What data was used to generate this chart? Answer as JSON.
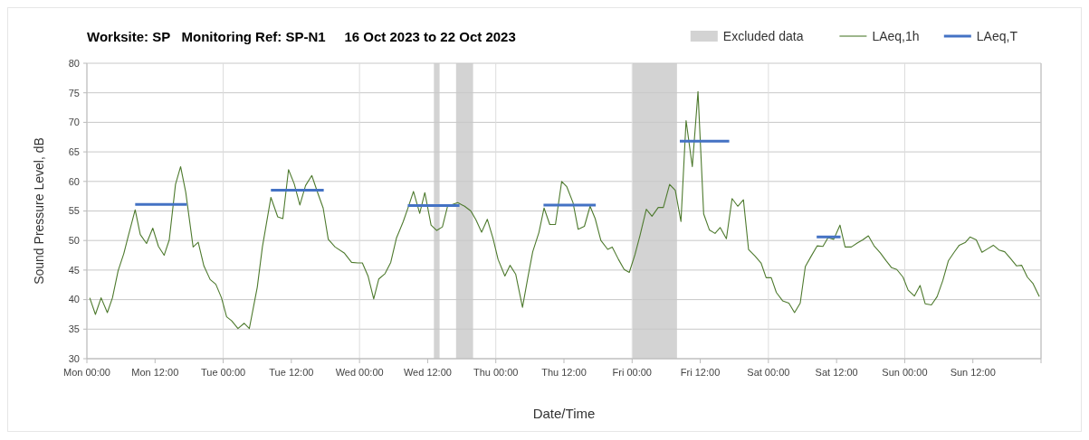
{
  "chart_data": {
    "type": "line",
    "title": "Worksite: SP   Monitoring Ref: SP-N1     16 Oct 2023 to 22 Oct 2023",
    "xlabel": "Date/Time",
    "ylabel": "Sound Pressure Level, dB",
    "xlim": [
      "2023-10-16T00:00",
      "2023-10-23T00:00"
    ],
    "ylim": [
      30,
      80
    ],
    "xticks": [
      {
        "value": "2023-10-16T00:00",
        "label": "Mon 00:00"
      },
      {
        "value": "2023-10-16T12:00",
        "label": "Mon 12:00"
      },
      {
        "value": "2023-10-17T00:00",
        "label": "Tue 00:00"
      },
      {
        "value": "2023-10-17T12:00",
        "label": "Tue 12:00"
      },
      {
        "value": "2023-10-18T00:00",
        "label": "Wed 00:00"
      },
      {
        "value": "2023-10-18T12:00",
        "label": "Wed 12:00"
      },
      {
        "value": "2023-10-19T00:00",
        "label": "Thu 00:00"
      },
      {
        "value": "2023-10-19T12:00",
        "label": "Thu 12:00"
      },
      {
        "value": "2023-10-20T00:00",
        "label": "Fri 00:00"
      },
      {
        "value": "2023-10-20T12:00",
        "label": "Fri 12:00"
      },
      {
        "value": "2023-10-21T00:00",
        "label": "Sat 00:00"
      },
      {
        "value": "2023-10-21T12:00",
        "label": "Sat 12:00"
      },
      {
        "value": "2023-10-22T00:00",
        "label": "Sun 00:00"
      },
      {
        "value": "2023-10-22T12:00",
        "label": "Sun 12:00"
      },
      {
        "value": "2023-10-23T00:00",
        "label": null
      }
    ],
    "yticks": [
      30,
      35,
      40,
      45,
      50,
      55,
      60,
      65,
      70,
      75,
      80
    ],
    "grid": true,
    "legend": "top right",
    "line_style": "solid",
    "marker": "none",
    "bands": [
      {
        "axis": "x",
        "from": "2023-10-18T13:06",
        "to": "2023-10-18T14:06",
        "label": "Excluded data",
        "color": "#d3d3d3"
      },
      {
        "axis": "x",
        "from": "2023-10-18T17:00",
        "to": "2023-10-18T20:00",
        "color": "#d3d3d3"
      },
      {
        "axis": "x",
        "from": "2023-10-20T00:06",
        "to": "2023-10-20T07:54",
        "color": "#d3d3d3"
      }
    ],
    "series": [
      {
        "name": "LAeq,1h",
        "color": "#4e7a2e",
        "x": [
          "2023-10-16T00:30",
          "2023-10-16T01:30",
          "2023-10-16T02:30",
          "2023-10-16T03:36",
          "2023-10-16T04:30",
          "2023-10-16T05:30",
          "2023-10-16T06:30",
          "2023-10-16T07:18",
          "2023-10-16T08:30",
          "2023-10-16T09:24",
          "2023-10-16T10:30",
          "2023-10-16T11:36",
          "2023-10-16T12:36",
          "2023-10-16T13:36",
          "2023-10-16T14:30",
          "2023-10-16T15:36",
          "2023-10-16T16:30",
          "2023-10-16T17:24",
          "2023-10-16T18:42",
          "2023-10-16T19:36",
          "2023-10-16T20:36",
          "2023-10-16T21:42",
          "2023-10-16T22:42",
          "2023-10-16T23:42",
          "2023-10-17T00:36",
          "2023-10-17T01:30",
          "2023-10-17T02:36",
          "2023-10-17T03:42",
          "2023-10-17T04:36",
          "2023-10-17T06:00",
          "2023-10-17T06:54",
          "2023-10-17T08:24",
          "2023-10-17T09:36",
          "2023-10-17T10:30",
          "2023-10-17T11:30",
          "2023-10-17T12:30",
          "2023-10-17T13:30",
          "2023-10-17T14:30",
          "2023-10-17T15:36",
          "2023-10-17T16:42",
          "2023-10-17T17:36",
          "2023-10-17T18:30",
          "2023-10-17T19:42",
          "2023-10-17T21:18",
          "2023-10-17T22:36",
          "2023-10-17T23:42",
          "2023-10-18T00:30",
          "2023-10-18T01:30",
          "2023-10-18T02:30",
          "2023-10-18T03:24",
          "2023-10-18T04:30",
          "2023-10-18T05:30",
          "2023-10-18T06:30",
          "2023-10-18T07:42",
          "2023-10-18T08:30",
          "2023-10-18T09:30",
          "2023-10-18T10:36",
          "2023-10-18T11:30",
          "2023-10-18T12:36",
          "2023-10-18T13:36",
          "2023-10-18T14:36",
          "2023-10-18T15:30",
          "2023-10-18T17:18",
          "2023-10-18T18:30",
          "2023-10-18T19:36",
          "2023-10-18T20:30",
          "2023-10-18T21:30",
          "2023-10-18T22:30",
          "2023-10-18T23:30",
          "2023-10-19T00:24",
          "2023-10-19T01:36",
          "2023-10-19T02:30",
          "2023-10-19T03:30",
          "2023-10-19T04:42",
          "2023-10-19T05:36",
          "2023-10-19T06:30",
          "2023-10-19T07:36",
          "2023-10-19T08:30",
          "2023-10-19T09:30",
          "2023-10-19T10:30",
          "2023-10-19T11:36",
          "2023-10-19T12:30",
          "2023-10-19T13:36",
          "2023-10-19T14:30",
          "2023-10-19T15:36",
          "2023-10-19T16:36",
          "2023-10-19T17:30",
          "2023-10-19T18:30",
          "2023-10-19T19:42",
          "2023-10-19T20:30",
          "2023-10-19T21:36",
          "2023-10-19T22:36",
          "2023-10-19T23:30",
          "2023-10-20T00:30",
          "2023-10-20T01:24",
          "2023-10-20T02:30",
          "2023-10-20T03:30",
          "2023-10-20T04:36",
          "2023-10-20T05:30",
          "2023-10-20T06:36",
          "2023-10-20T07:36",
          "2023-10-20T08:36",
          "2023-10-20T09:30",
          "2023-10-20T10:36",
          "2023-10-20T11:36",
          "2023-10-20T12:36",
          "2023-10-20T13:36",
          "2023-10-20T14:36",
          "2023-10-20T15:30",
          "2023-10-20T16:36",
          "2023-10-20T17:36",
          "2023-10-20T18:36",
          "2023-10-20T19:36",
          "2023-10-20T20:30",
          "2023-10-20T21:36",
          "2023-10-20T22:42",
          "2023-10-20T23:36",
          "2023-10-21T00:30",
          "2023-10-21T01:24",
          "2023-10-21T02:30",
          "2023-10-21T03:36",
          "2023-10-21T04:36",
          "2023-10-21T05:36",
          "2023-10-21T06:30",
          "2023-10-21T07:30",
          "2023-10-21T08:36",
          "2023-10-21T09:36",
          "2023-10-21T10:30",
          "2023-10-21T11:30",
          "2023-10-21T12:36",
          "2023-10-21T13:30",
          "2023-10-21T14:36",
          "2023-10-21T15:42",
          "2023-10-21T16:36",
          "2023-10-21T17:36",
          "2023-10-21T18:36",
          "2023-10-21T19:42",
          "2023-10-21T20:42",
          "2023-10-21T21:42",
          "2023-10-21T22:36",
          "2023-10-21T23:42",
          "2023-10-22T00:36",
          "2023-10-22T01:42",
          "2023-10-22T02:42",
          "2023-10-22T03:36",
          "2023-10-22T04:42",
          "2023-10-22T05:42",
          "2023-10-22T06:42",
          "2023-10-22T07:42",
          "2023-10-22T08:42",
          "2023-10-22T09:36",
          "2023-10-22T10:42",
          "2023-10-22T11:30",
          "2023-10-22T12:36",
          "2023-10-22T13:36",
          "2023-10-22T14:36",
          "2023-10-22T15:36",
          "2023-10-22T16:36",
          "2023-10-22T17:36",
          "2023-10-22T18:36",
          "2023-10-22T19:42",
          "2023-10-22T20:36",
          "2023-10-22T21:36",
          "2023-10-22T22:36",
          "2023-10-22T23:42"
        ],
        "values": [
          40.3,
          37.5,
          40.3,
          37.8,
          40.3,
          44.9,
          47.8,
          50.8,
          55.2,
          51.0,
          49.5,
          52.1,
          49.0,
          47.5,
          50.1,
          59.5,
          62.5,
          58.2,
          48.9,
          49.7,
          45.7,
          43.4,
          42.6,
          40.3,
          37.1,
          36.4,
          35.1,
          36.0,
          35.1,
          42.1,
          48.9,
          57.3,
          54.0,
          53.7,
          62.0,
          59.6,
          56.0,
          59.3,
          61.0,
          57.9,
          55.5,
          50.2,
          48.9,
          47.9,
          46.3,
          46.2,
          46.2,
          44.0,
          40.1,
          43.5,
          44.4,
          46.3,
          50.4,
          53.2,
          55.4,
          58.3,
          54.6,
          58.1,
          52.6,
          51.7,
          52.3,
          55.8,
          56.4,
          55.8,
          55.0,
          53.5,
          51.4,
          53.6,
          50.4,
          46.8,
          44.0,
          45.8,
          44.3,
          38.7,
          43.5,
          48.1,
          51.4,
          55.5,
          52.7,
          52.7,
          60.0,
          59.1,
          56.4,
          51.9,
          52.4,
          55.8,
          53.7,
          50.0,
          48.5,
          48.9,
          46.8,
          45.1,
          44.6,
          47.6,
          50.9,
          55.3,
          54.1,
          55.6,
          55.6,
          59.5,
          58.5,
          53.2,
          70.3,
          62.5,
          75.2,
          54.5,
          51.8,
          51.2,
          52.2,
          50.3,
          57.1,
          55.8,
          56.9,
          48.5,
          47.4,
          46.2,
          43.7,
          43.7,
          41.2,
          39.8,
          39.4,
          37.8,
          39.4,
          45.6,
          47.3,
          49.1,
          49.0,
          50.5,
          50.2,
          52.6,
          48.9,
          48.9,
          49.6,
          50.1,
          50.8,
          49.1,
          47.9,
          46.6,
          45.4,
          45.1,
          43.8,
          41.6,
          40.6,
          42.4,
          39.3,
          39.1,
          40.5,
          43.2,
          46.6,
          48.0,
          49.2,
          49.7,
          50.6,
          50.1,
          48.0,
          48.6,
          49.2,
          48.4,
          48.1,
          47.0,
          45.7,
          45.8,
          43.8,
          42.7,
          40.5
        ]
      },
      {
        "name": "LAeq,T",
        "color": "#4472c4",
        "x": [
          "2023-10-16T08:30",
          "2023-10-16T17:36",
          "2023-10-17T01:00",
          "2023-10-17T08:24",
          "2023-10-17T17:42",
          "2023-10-18T02:00",
          "2023-10-18T08:30",
          "2023-10-18T17:36",
          "2023-10-19T01:00",
          "2023-10-19T08:24",
          "2023-10-19T17:36",
          "2023-10-20T01:00",
          "2023-10-20T08:24",
          "2023-10-20T17:06",
          "2023-10-21T00:00",
          "2023-10-21T08:30",
          "2023-10-21T12:42"
        ],
        "values": [
          56.1,
          56.1,
          null,
          58.5,
          58.5,
          null,
          55.9,
          55.9,
          null,
          56.0,
          56.0,
          null,
          66.8,
          66.8,
          null,
          50.6,
          50.6
        ]
      }
    ]
  }
}
